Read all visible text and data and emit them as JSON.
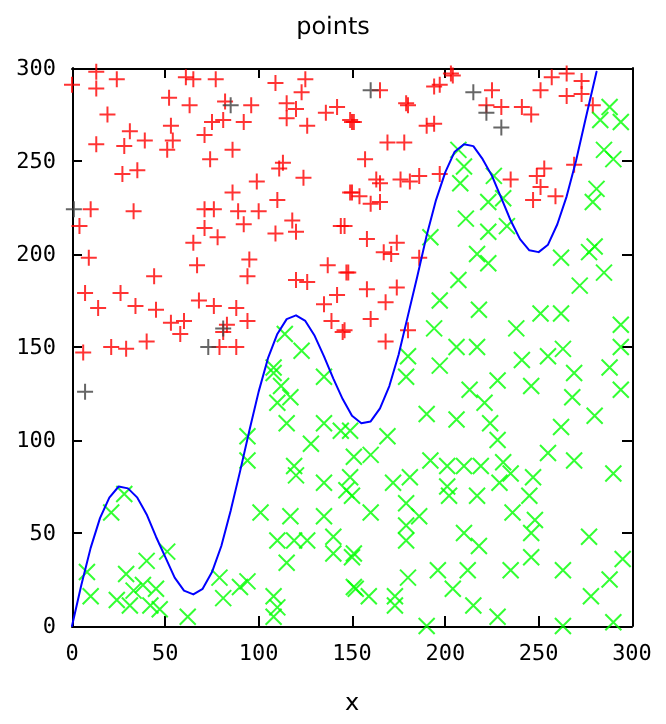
{
  "chart_data": {
    "type": "scatter",
    "title": "points",
    "xlabel": "x",
    "xlim": [
      0,
      300
    ],
    "xticks": [
      0,
      50,
      100,
      150,
      200,
      250,
      300
    ],
    "ylim": [
      0,
      300
    ],
    "yticks": [
      0,
      50,
      100,
      150,
      200,
      250,
      300
    ],
    "grid": false,
    "series": [
      {
        "marker": "plus",
        "color": "#ff0000",
        "x": [
          13,
          0,
          24,
          13,
          61,
          65,
          77,
          109,
          125,
          123,
          52,
          63,
          82,
          96,
          115,
          120,
          142,
          19,
          31,
          53,
          75,
          81,
          92,
          115,
          126,
          136,
          150,
          13,
          28,
          39,
          54,
          51,
          71,
          86,
          74,
          113,
          111,
          124,
          27,
          35,
          99,
          86,
          110,
          150,
          10,
          33,
          71,
          76,
          89,
          100,
          118,
          4,
          71,
          92,
          120,
          144,
          109,
          78,
          65,
          9,
          95,
          67,
          44,
          94,
          120,
          126,
          137,
          148,
          7,
          26,
          68,
          142,
          14,
          34,
          45,
          76,
          88,
          135,
          53,
          60,
          83,
          94,
          139,
          58,
          81,
          145,
          40,
          21,
          29,
          79,
          88,
          6,
          203,
          204,
          165,
          194,
          197,
          179,
          180,
          149,
          151,
          190,
          194,
          169,
          178,
          157,
          163,
          165,
          176,
          181,
          186,
          197,
          149,
          154,
          160,
          165,
          146,
          158,
          167,
          174,
          171,
          186,
          147,
          158,
          174,
          168,
          160,
          146,
          168,
          180,
          225,
          222,
          230,
          241,
          246,
          251,
          257,
          265,
          273,
          265,
          273,
          279,
          235,
          247,
          249,
          253,
          259,
          269,
          251
        ],
        "values": [
          298,
          291,
          294,
          289,
          295,
          294,
          294,
          292,
          294,
          287,
          284,
          280,
          282,
          280,
          281,
          278,
          279,
          275,
          266,
          269,
          271,
          272,
          271,
          273,
          269,
          276,
          271,
          259,
          258,
          261,
          261,
          256,
          264,
          256,
          251,
          249,
          246,
          241,
          243,
          245,
          239,
          233,
          229,
          233,
          224,
          223,
          224,
          224,
          223,
          223,
          218,
          215,
          214,
          216,
          212,
          215,
          211,
          209,
          206,
          198,
          197,
          194,
          188,
          188,
          186,
          185,
          194,
          190,
          179,
          179,
          175,
          178,
          171,
          172,
          170,
          172,
          171,
          173,
          163,
          164,
          162,
          164,
          164,
          157,
          158,
          158,
          153,
          150,
          149,
          150,
          150,
          147,
          297,
          296,
          288,
          290,
          291,
          281,
          280,
          272,
          271,
          269,
          270,
          260,
          260,
          251,
          240,
          238,
          240,
          239,
          242,
          243,
          233,
          231,
          227,
          228,
          215,
          208,
          201,
          206,
          200,
          198,
          190,
          181,
          182,
          174,
          165,
          159,
          153,
          159,
          288,
          280,
          279,
          279,
          275,
          288,
          295,
          297,
          293,
          285,
          286,
          280,
          240,
          229,
          242,
          246,
          231,
          248,
          236
        ]
      },
      {
        "marker": "plus",
        "color": "#404040",
        "x": [
          1,
          7,
          73,
          81,
          215,
          222,
          230,
          160,
          85
        ],
        "values": [
          224,
          126,
          150,
          160,
          287,
          276,
          268,
          288,
          280
        ]
      },
      {
        "marker": "cross",
        "color": "#00ff00",
        "x": [
          108,
          112,
          117,
          110,
          115,
          135,
          135,
          128,
          144,
          151,
          119,
          120,
          135,
          147,
          117,
          135,
          110,
          119,
          126,
          115,
          140,
          140,
          151,
          151,
          101,
          94,
          94,
          108,
          21,
          28,
          8,
          10,
          29,
          40,
          38,
          33,
          45,
          42,
          47,
          24,
          51,
          79,
          81,
          94,
          90,
          108,
          110,
          108,
          62,
          31,
          180,
          179,
          197,
          206,
          217,
          241,
          255,
          263,
          269,
          268,
          246,
          228,
          288,
          294,
          213,
          221,
          190,
          206,
          224,
          228,
          262,
          280,
          294,
          149,
          169,
          160,
          192,
          201,
          210,
          219,
          231,
          235,
          247,
          255,
          269,
          290,
          149,
          172,
          181,
          201,
          202,
          217,
          229,
          245,
          150,
          160,
          179,
          186,
          179,
          179,
          210,
          218,
          236,
          248,
          246,
          246,
          150,
          277,
          295,
          263,
          235,
          212,
          196,
          180,
          152,
          159,
          173,
          173,
          204,
          215,
          228,
          288,
          278,
          190,
          263,
          290,
          288,
          283,
          294,
          285,
          290,
          281,
          279,
          207,
          210,
          208,
          226,
          223,
          231,
          211,
          223,
          233,
          192,
          217,
          223,
          262,
          272,
          285,
          280,
          197,
          207,
          218,
          238,
          251,
          262,
          194,
          294,
          277,
          114,
          123
        ],
        "values": [
          136,
          129,
          123,
          120,
          109,
          134,
          109,
          98,
          105,
          91,
          86,
          81,
          77,
          73,
          59,
          59,
          46,
          46,
          46,
          34,
          48,
          39,
          39,
          21,
          61,
          89,
          102,
          139,
          61,
          71,
          29,
          16,
          28,
          35,
          22,
          19,
          20,
          11,
          9,
          14,
          40,
          26,
          15,
          24,
          21,
          16,
          10,
          5,
          5,
          11,
          145,
          134,
          140,
          150,
          150,
          143,
          145,
          149,
          136,
          123,
          129,
          132,
          139,
          150,
          127,
          120,
          114,
          111,
          109,
          100,
          107,
          113,
          127,
          105,
          102,
          92,
          89,
          86,
          86,
          86,
          88,
          82,
          80,
          93,
          89,
          82,
          80,
          77,
          80,
          75,
          70,
          70,
          77,
          70,
          70,
          61,
          66,
          59,
          54,
          46,
          50,
          43,
          61,
          57,
          50,
          37,
          37,
          48,
          36,
          30,
          30,
          30,
          30,
          26,
          20,
          16,
          16,
          11,
          20,
          11,
          5,
          25,
          16,
          0,
          0,
          2,
          279,
          272,
          271,
          256,
          251,
          235,
          228,
          256,
          247,
          238,
          242,
          228,
          230,
          219,
          212,
          215,
          209,
          200,
          195,
          198,
          183,
          190,
          204,
          175,
          186,
          170,
          160,
          168,
          168,
          160,
          162,
          201,
          157,
          148
        ]
      },
      {
        "type": "line",
        "marker": "none",
        "line_style": "solid",
        "color": "#0000ff",
        "x": [
          0,
          5,
          10,
          15,
          20,
          25,
          30,
          35,
          40,
          45,
          50,
          55,
          60,
          65,
          70,
          75,
          80,
          85,
          90,
          95,
          100,
          105,
          110,
          115,
          120,
          125,
          130,
          135,
          140,
          145,
          150,
          155,
          160,
          165,
          170,
          175,
          180,
          185,
          190,
          195,
          200,
          205,
          210,
          215,
          220,
          225,
          230,
          235,
          240,
          245,
          250,
          255,
          260,
          265,
          270,
          275,
          281
        ],
        "values": [
          0,
          22,
          42,
          58,
          69,
          75,
          74,
          69,
          60,
          48,
          37,
          26,
          19,
          17,
          20,
          29,
          43,
          62,
          83,
          105,
          126,
          144,
          157,
          165,
          167,
          164,
          156,
          145,
          133,
          122,
          113,
          109,
          110,
          117,
          129,
          146,
          167,
          188,
          210,
          229,
          244,
          255,
          259,
          258,
          251,
          242,
          230,
          218,
          208,
          202,
          201,
          205,
          216,
          231,
          250,
          272,
          298
        ]
      }
    ]
  }
}
